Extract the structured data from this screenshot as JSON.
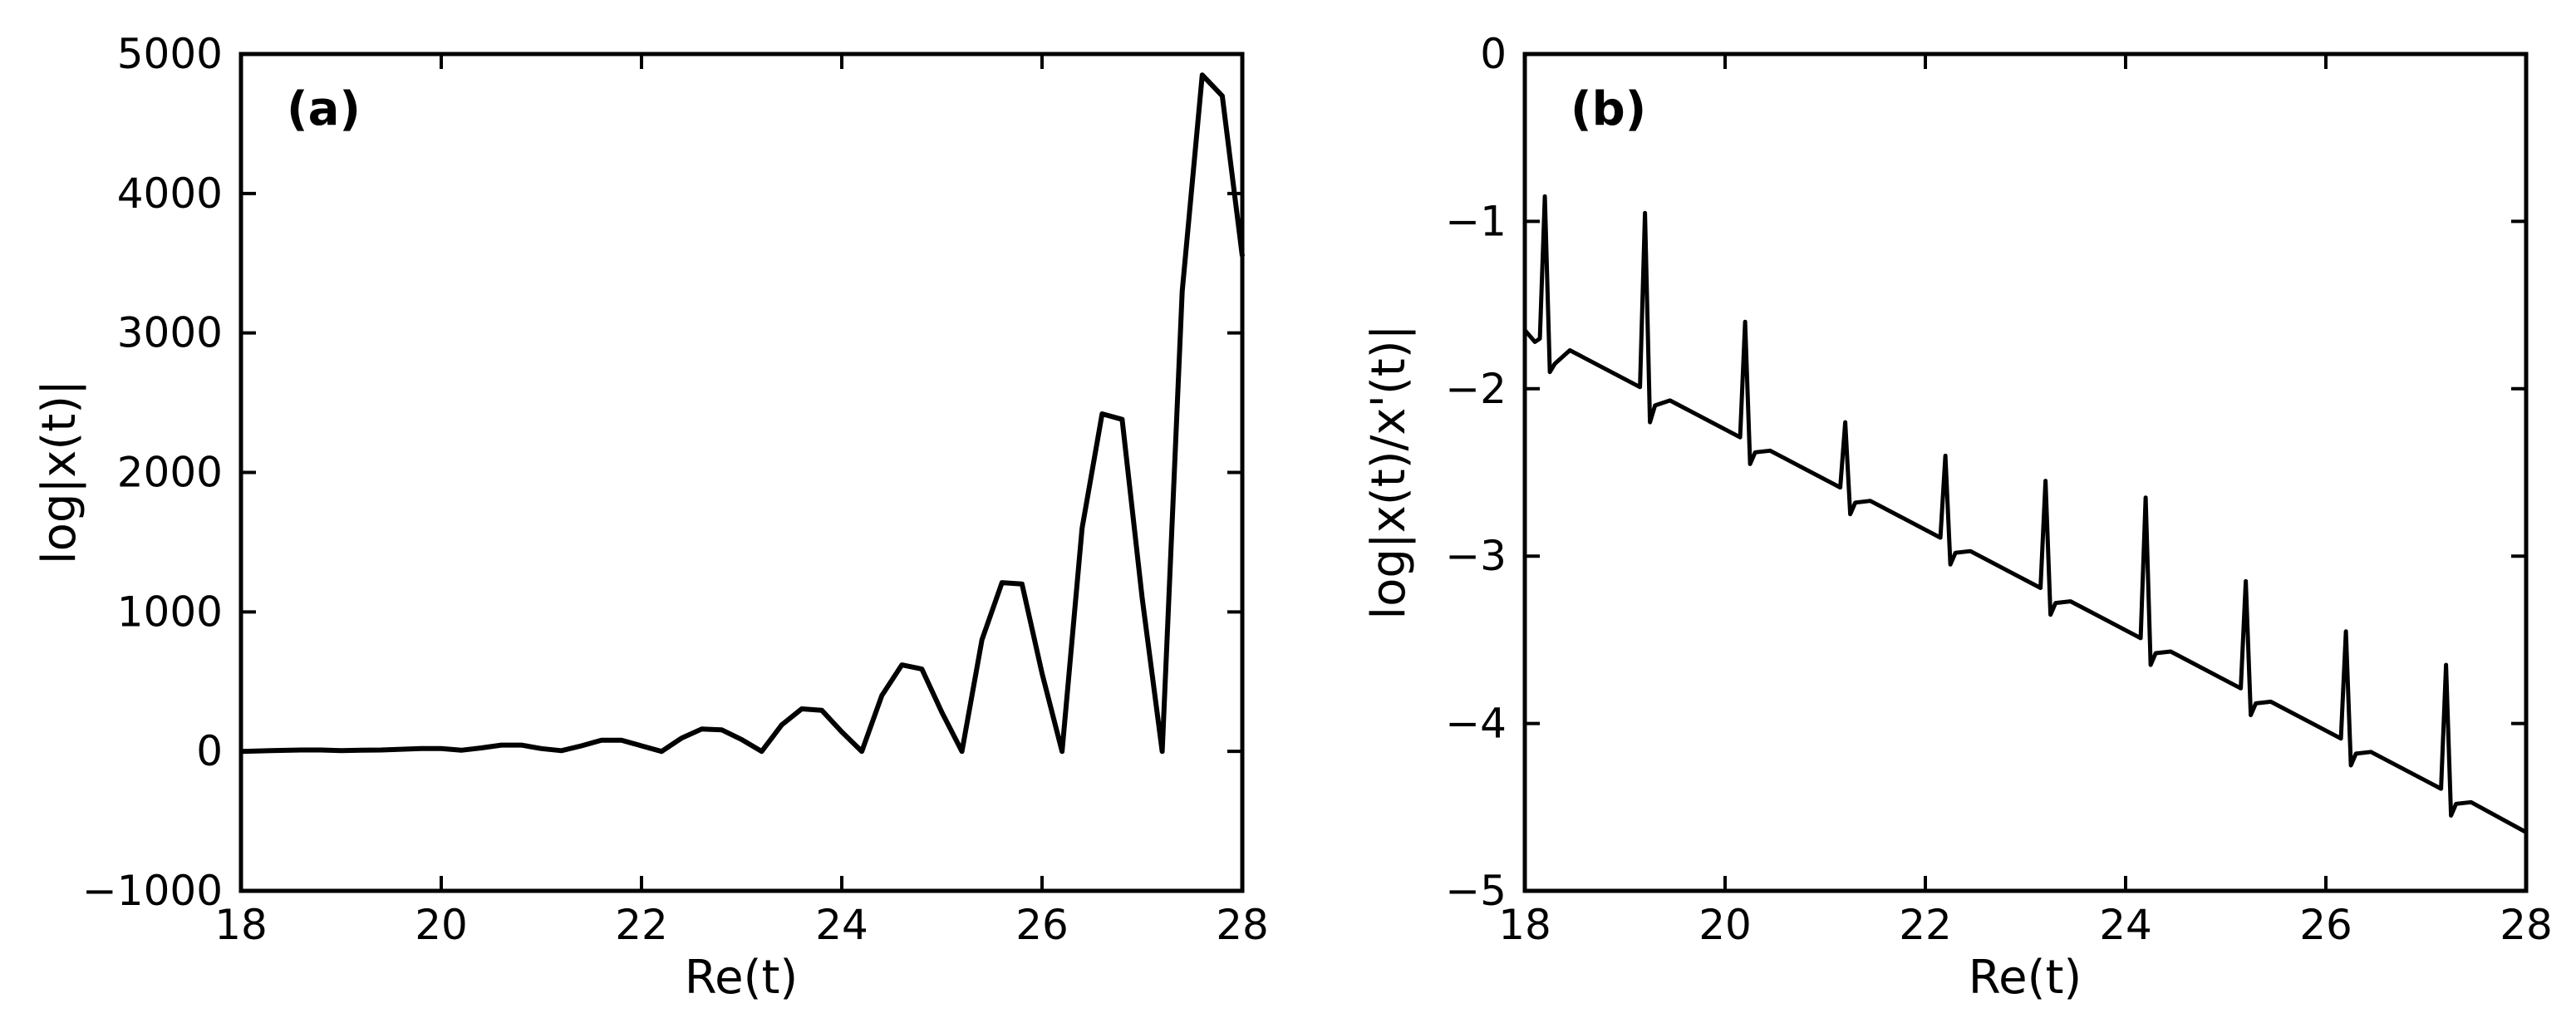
{
  "chart_data": [
    {
      "panel_label": "(a)",
      "type": "line",
      "xlabel": "Re(t)",
      "ylabel": "log|x(t)|",
      "xlim": [
        18,
        28
      ],
      "ylim": [
        -1000,
        5000
      ],
      "xticks": [
        18,
        20,
        22,
        24,
        26,
        28
      ],
      "yticks": [
        -1000,
        0,
        1000,
        2000,
        3000,
        4000,
        5000
      ],
      "xtick_labels": [
        "18",
        "20",
        "22",
        "24",
        "26",
        "28"
      ],
      "ytick_labels": [
        "−1000",
        "0",
        "1000",
        "2000",
        "3000",
        "4000",
        "5000"
      ],
      "grid": false,
      "legend": false,
      "line_color": "#000000",
      "series": [
        {
          "x": [
            18.0,
            18.3,
            18.6,
            18.8,
            19.0,
            19.2,
            19.4,
            19.6,
            19.8,
            20.0,
            20.2,
            20.4,
            20.6,
            20.8,
            21.0,
            21.2,
            21.4,
            21.6,
            21.8,
            22.0,
            22.2,
            22.4,
            22.6,
            22.8,
            23.0,
            23.2,
            23.4,
            23.6,
            23.8,
            24.0,
            24.2,
            24.4,
            24.6,
            24.8,
            25.0,
            25.2,
            25.4,
            25.6,
            25.8,
            26.0,
            26.2,
            26.4,
            26.6,
            26.8,
            27.0,
            27.2,
            27.4,
            27.6,
            27.8,
            28.0
          ],
          "y": [
            0,
            5,
            10,
            10,
            5,
            8,
            10,
            15,
            20,
            20,
            8,
            25,
            45,
            45,
            20,
            5,
            40,
            80,
            80,
            40,
            0,
            95,
            160,
            155,
            85,
            0,
            190,
            305,
            295,
            140,
            0,
            400,
            620,
            590,
            280,
            0,
            800,
            1210,
            1200,
            560,
            0,
            1600,
            2420,
            2380,
            1100,
            0,
            3300,
            4850,
            4700,
            3550
          ]
        }
      ]
    },
    {
      "panel_label": "(b)",
      "type": "line",
      "xlabel": "Re(t)",
      "ylabel": "log|x(t)/x'(t)|",
      "xlim": [
        18,
        28
      ],
      "ylim": [
        -5,
        0
      ],
      "xticks": [
        18,
        20,
        22,
        24,
        26,
        28
      ],
      "yticks": [
        -5,
        -4,
        -3,
        -2,
        -1,
        0
      ],
      "xtick_labels": [
        "18",
        "20",
        "22",
        "24",
        "26",
        "28"
      ],
      "ytick_labels": [
        "−5",
        "−4",
        "−3",
        "−2",
        "−1",
        "0"
      ],
      "grid": false,
      "legend": false,
      "line_color": "#000000",
      "series": [
        {
          "baseline_start": [
            18.0,
            -1.65
          ],
          "baseline_slope": -0.3,
          "spikes": [
            {
              "x": 18.2,
              "peak": -0.85,
              "dip": -1.9
            },
            {
              "x": 19.2,
              "peak": -0.95,
              "dip": -2.2
            },
            {
              "x": 20.2,
              "peak": -1.6,
              "dip": -2.45
            },
            {
              "x": 21.2,
              "peak": -2.2,
              "dip": -2.75
            },
            {
              "x": 22.2,
              "peak": -2.4,
              "dip": -3.05
            },
            {
              "x": 23.2,
              "peak": -2.55,
              "dip": -3.35
            },
            {
              "x": 24.2,
              "peak": -2.65,
              "dip": -3.65
            },
            {
              "x": 25.2,
              "peak": -3.15,
              "dip": -3.95
            },
            {
              "x": 26.2,
              "peak": -3.45,
              "dip": -4.25
            },
            {
              "x": 27.2,
              "peak": -3.65,
              "dip": -4.55
            }
          ],
          "x": [
            18.0,
            18.1,
            18.15,
            18.2,
            18.25,
            18.3,
            18.45,
            19.15,
            19.2,
            19.25,
            19.3,
            19.45,
            20.15,
            20.2,
            20.25,
            20.3,
            20.45,
            21.15,
            21.2,
            21.25,
            21.3,
            21.45,
            22.15,
            22.2,
            22.25,
            22.3,
            22.45,
            23.15,
            23.2,
            23.25,
            23.3,
            23.45,
            24.15,
            24.2,
            24.25,
            24.3,
            24.45,
            25.15,
            25.2,
            25.25,
            25.3,
            25.45,
            26.15,
            26.2,
            26.25,
            26.3,
            26.45,
            27.15,
            27.2,
            27.25,
            27.3,
            27.45,
            28.0
          ],
          "y": [
            -1.65,
            -1.72,
            -1.7,
            -0.85,
            -1.9,
            -1.85,
            -1.77,
            -1.99,
            -0.95,
            -2.2,
            -2.1,
            -2.07,
            -2.29,
            -1.6,
            -2.45,
            -2.38,
            -2.37,
            -2.59,
            -2.2,
            -2.75,
            -2.68,
            -2.67,
            -2.89,
            -2.4,
            -3.05,
            -2.98,
            -2.97,
            -3.19,
            -2.55,
            -3.35,
            -3.28,
            -3.27,
            -3.49,
            -2.65,
            -3.65,
            -3.58,
            -3.57,
            -3.79,
            -3.15,
            -3.95,
            -3.88,
            -3.87,
            -4.09,
            -3.45,
            -4.25,
            -4.18,
            -4.17,
            -4.39,
            -3.65,
            -4.55,
            -4.48,
            -4.47,
            -4.65
          ]
        }
      ]
    }
  ]
}
